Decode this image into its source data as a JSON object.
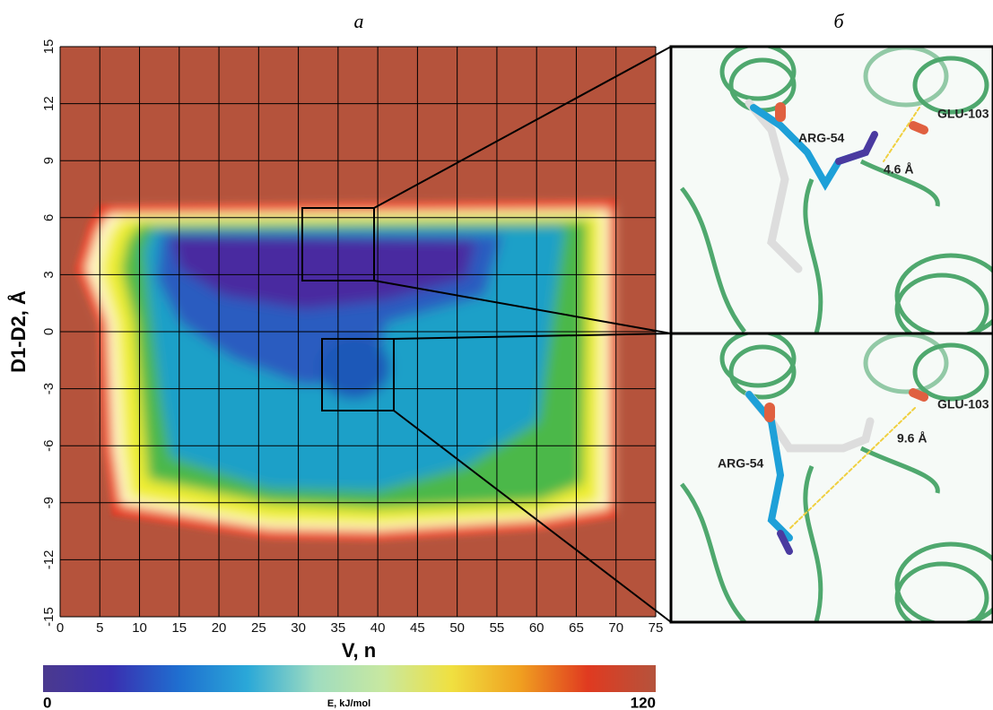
{
  "chart_data": {
    "type": "heatmap",
    "xlabel": "V, n",
    "ylabel": "D1-D2, Å",
    "xlim": [
      0,
      75
    ],
    "ylim": [
      -15,
      15
    ],
    "xticks": [
      0,
      5,
      10,
      15,
      20,
      25,
      30,
      35,
      40,
      45,
      50,
      55,
      60,
      65,
      70,
      75
    ],
    "yticks": [
      -15,
      -12,
      -9,
      -6,
      -3,
      0,
      3,
      6,
      9,
      12,
      15
    ],
    "grid": true,
    "colorbar": {
      "label": "E, kJ/mol",
      "ticks": [
        0,
        120
      ],
      "colors": [
        "#4b3a8e",
        "#3a2fb0",
        "#1f6fd0",
        "#2aa8d8",
        "#9fdcc0",
        "#c8e8a0",
        "#f0e040",
        "#f0a020",
        "#e03a20",
        "#b5533c"
      ]
    }
  },
  "panel_labels": [
    "a",
    "б"
  ],
  "panel_b": {
    "top": {
      "residue_1": "ARG-54",
      "residue_2": "GLU-103",
      "distance": "4.6 Å"
    },
    "bottom": {
      "residue_1": "ARG-54",
      "residue_2": "GLU-103",
      "distance": "9.6 Å"
    }
  }
}
